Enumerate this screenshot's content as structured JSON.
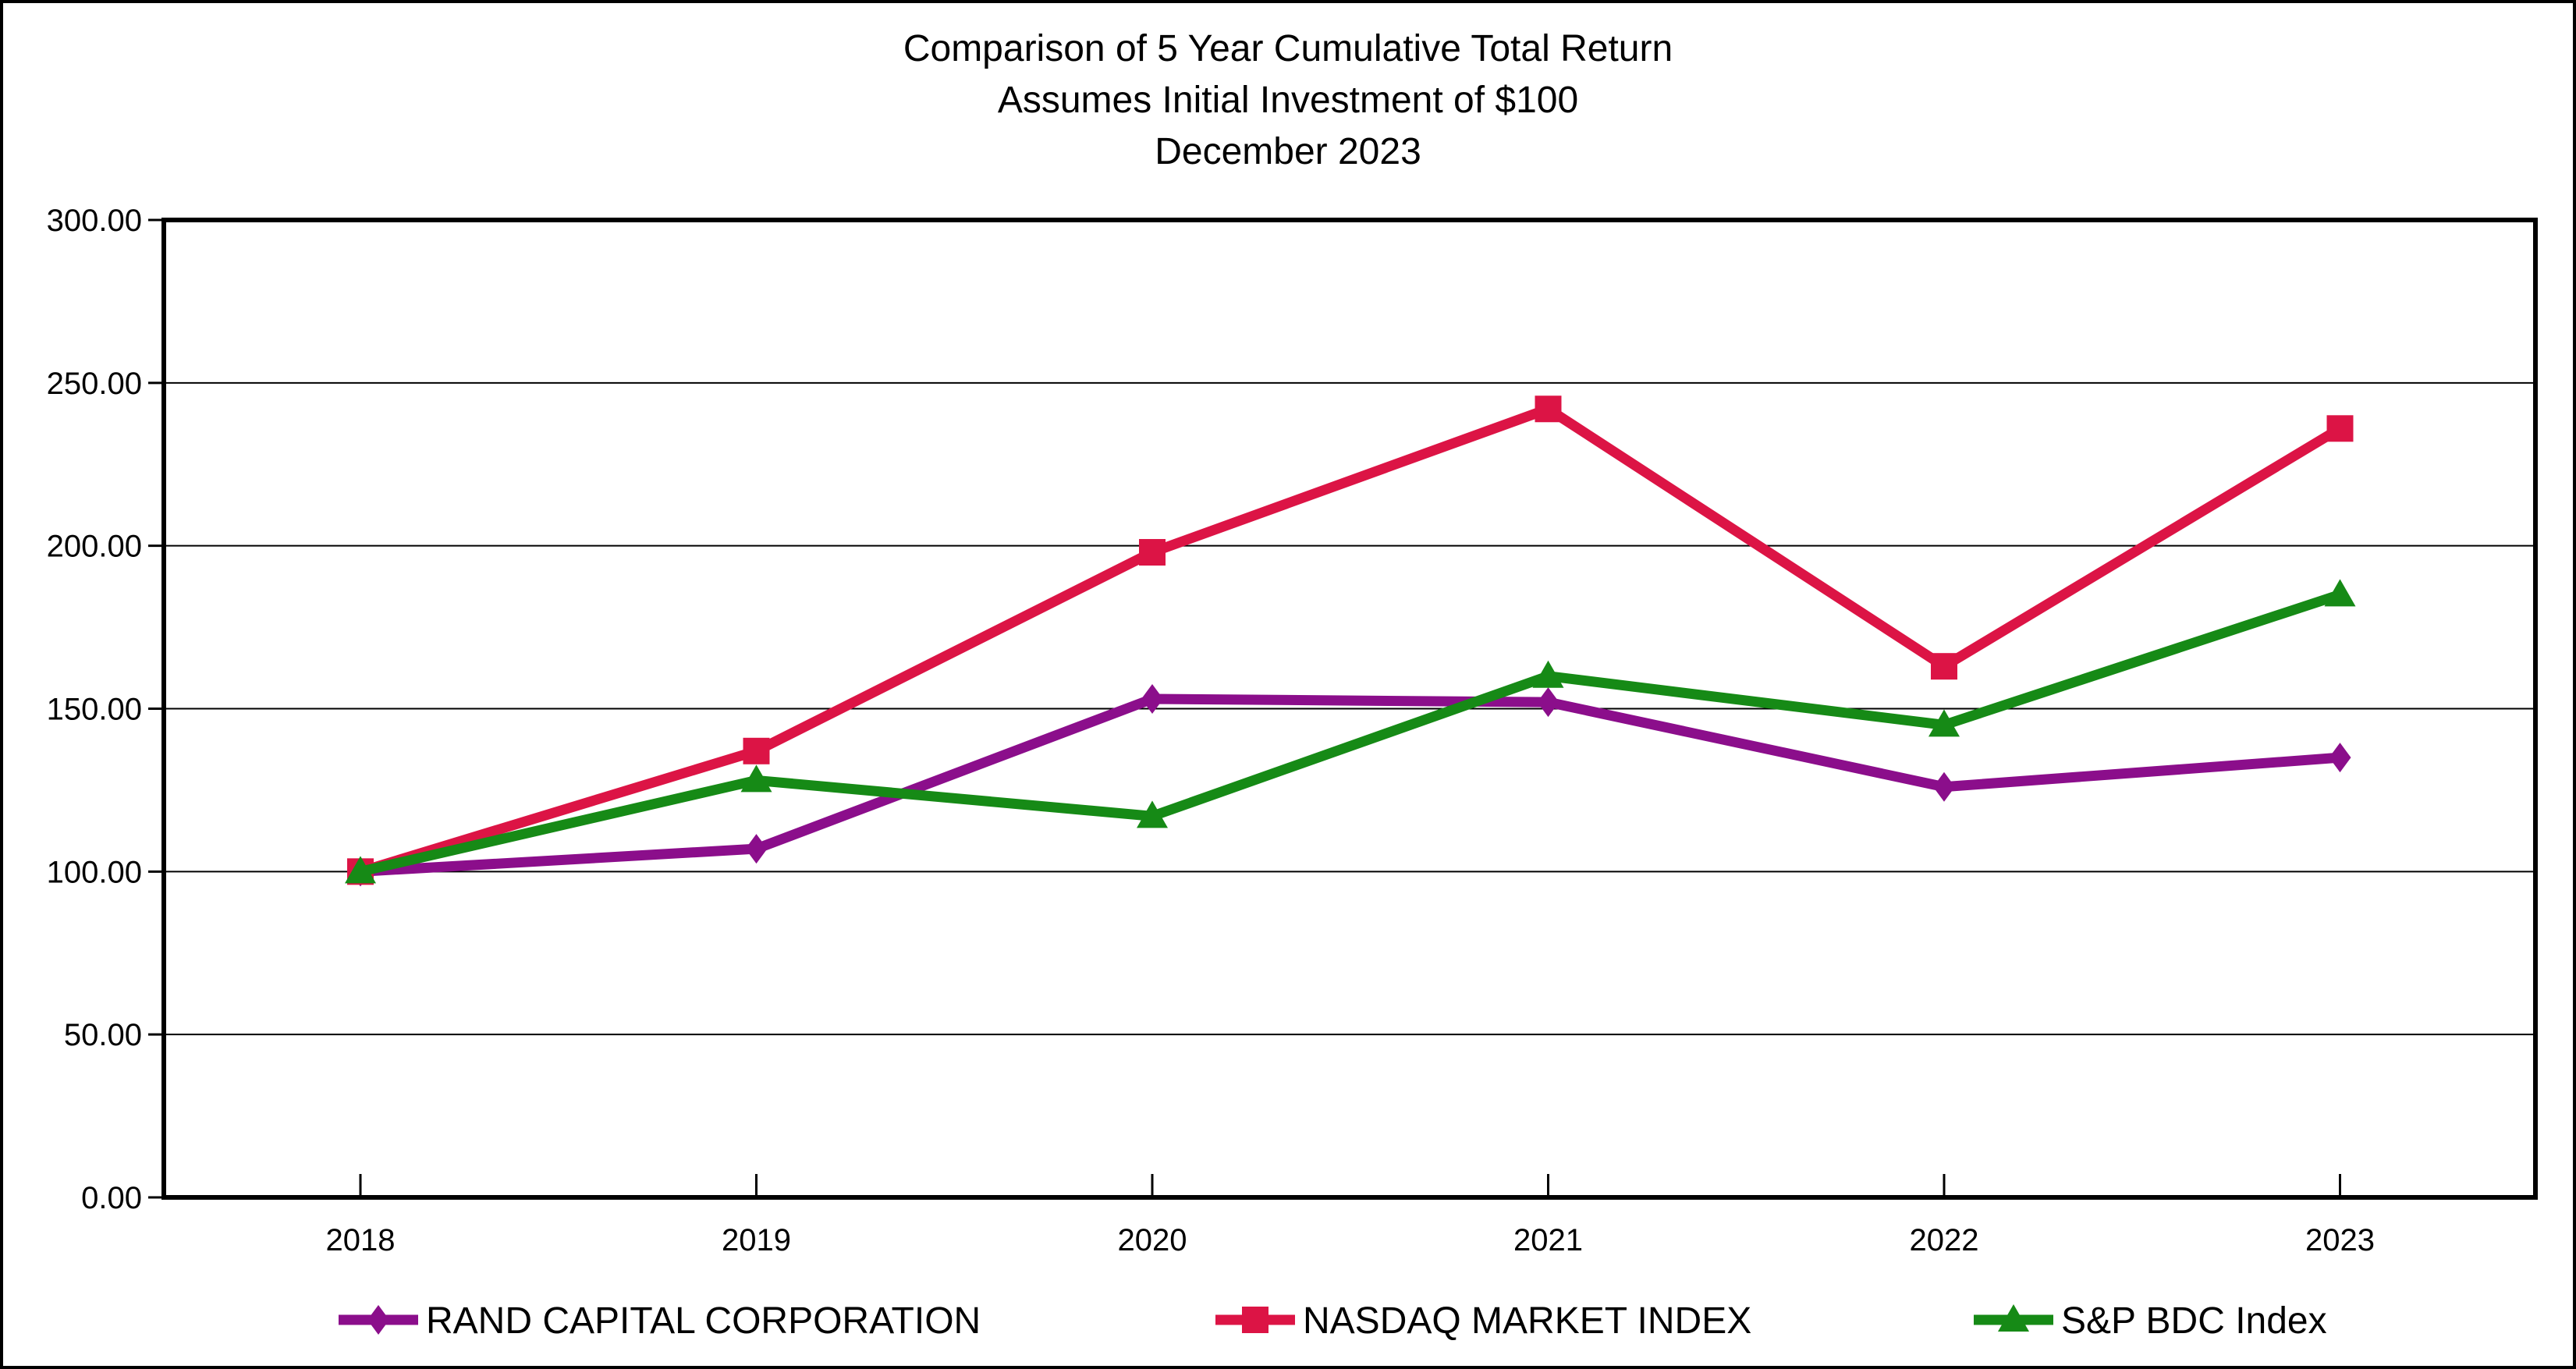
{
  "chart_data": {
    "type": "line",
    "title": "Comparison of 5 Year Cumulative Total Return",
    "subtitle": "Assumes Initial Investment of $100",
    "date_line": "December 2023",
    "categories": [
      "2018",
      "2019",
      "2020",
      "2021",
      "2022",
      "2023"
    ],
    "series": [
      {
        "name": "RAND CAPITAL CORPORATION",
        "color": "#8B0E8B",
        "marker": "diamond",
        "values": [
          100,
          107,
          153,
          152,
          126,
          135
        ]
      },
      {
        "name": "NASDAQ MARKET INDEX",
        "color": "#DC1445",
        "marker": "square",
        "values": [
          100,
          137,
          198,
          242,
          163,
          236
        ]
      },
      {
        "name": "S&P BDC Index",
        "color": "#168A16",
        "marker": "triangle",
        "values": [
          100,
          128,
          117,
          160,
          145,
          185
        ]
      }
    ],
    "y_axis": {
      "min": 0,
      "max": 300,
      "step": 50,
      "tick_labels": [
        "0.00",
        "50.00",
        "100.00",
        "150.00",
        "200.00",
        "250.00",
        "300.00"
      ]
    },
    "x_axis": {
      "tick_labels": [
        "2018",
        "2019",
        "2020",
        "2021",
        "2022",
        "2023"
      ]
    },
    "grid": true,
    "legend_position": "bottom",
    "axis_color": "#000000",
    "background_color": "#FFFFFF"
  }
}
